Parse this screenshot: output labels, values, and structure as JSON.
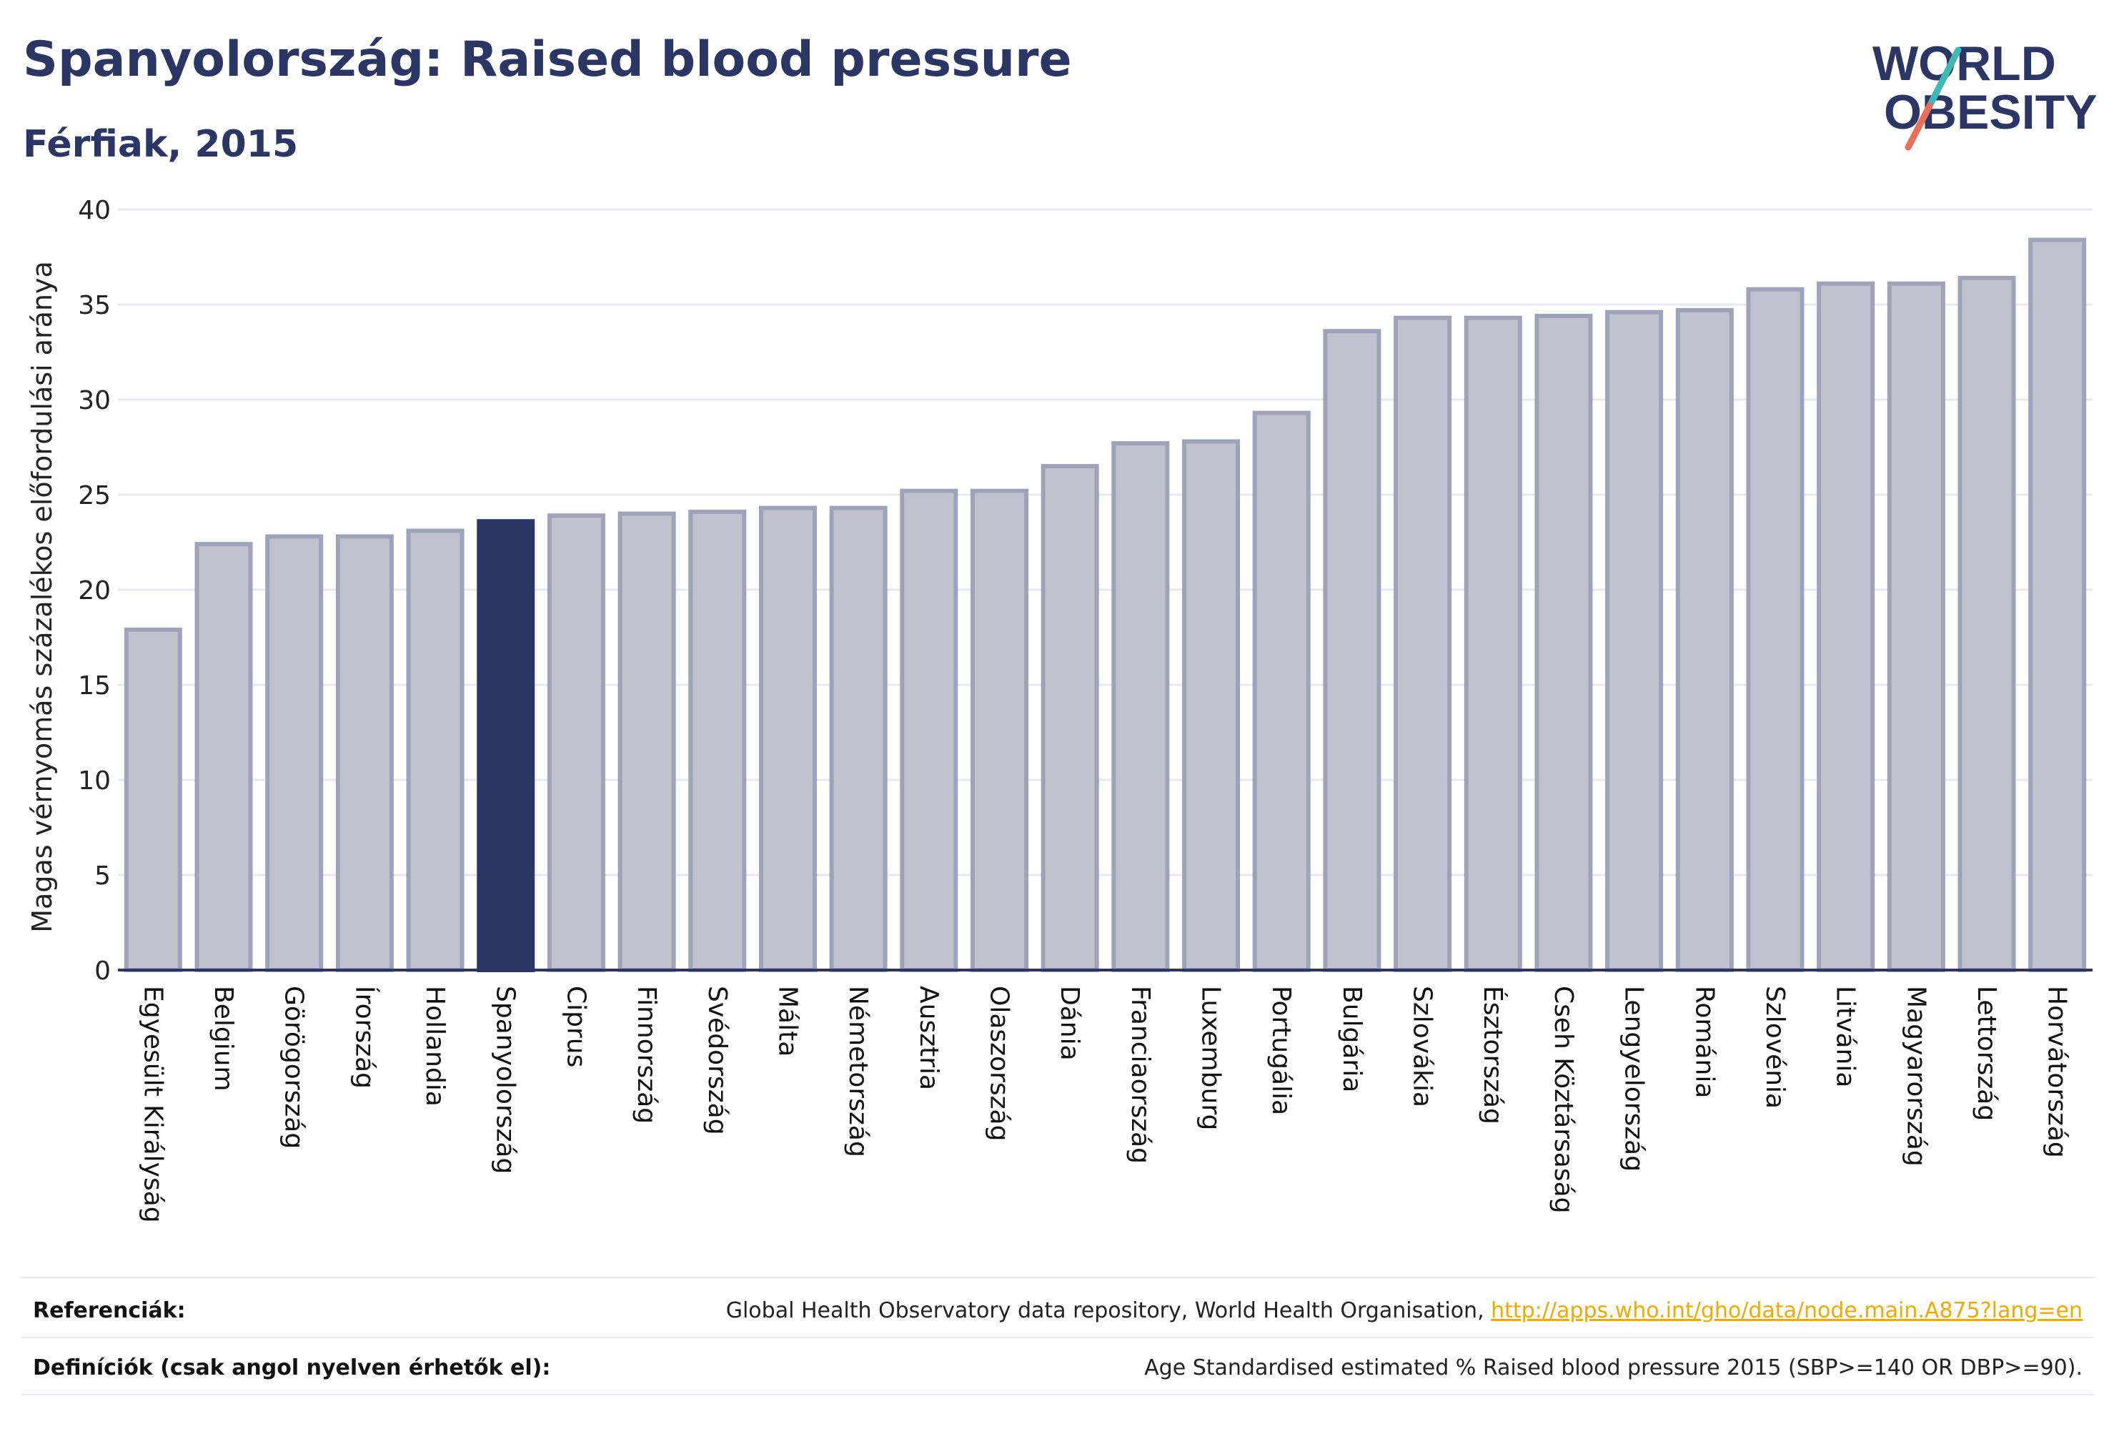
{
  "header": {
    "title": "Spanyolország: Raised blood pressure",
    "subtitle": "Férfiak, 2015"
  },
  "logo": {
    "line1": "WORLD",
    "line2": "OBESITY",
    "text_color": "#2b3664",
    "slash_colors": [
      "#3fb9b4",
      "#e8705a"
    ]
  },
  "colors": {
    "bar_fill": "#c0c3cf",
    "bar_stroke": "#9ea3ba",
    "highlight_fill": "#2b3664",
    "grid": "#e7e9f1",
    "axis": "#2b3664"
  },
  "chart_data": {
    "type": "bar",
    "ylabel": "Magas vérnyomás százalékos előfordulási aránya",
    "ylim": [
      0,
      40
    ],
    "yticks": [
      0,
      5,
      10,
      15,
      20,
      25,
      30,
      35,
      40
    ],
    "grid": true,
    "highlight": "Spanyolország",
    "categories": [
      "Egyesült Királyság",
      "Belgium",
      "Görögország",
      "Írország",
      "Hollandia",
      "Spanyolország",
      "Ciprus",
      "Finnország",
      "Svédország",
      "Málta",
      "Németország",
      "Ausztria",
      "Olaszország",
      "Dánia",
      "Franciaország",
      "Luxemburg",
      "Portugália",
      "Bulgária",
      "Szlovákia",
      "Észtország",
      "Cseh Köztársaság",
      "Lengyelország",
      "Románia",
      "Szlovénia",
      "Litvánia",
      "Magyarország",
      "Lettország",
      "Horvátország"
    ],
    "values": [
      17.9,
      22.4,
      22.8,
      22.8,
      23.1,
      23.6,
      23.9,
      24.0,
      24.1,
      24.3,
      24.3,
      25.2,
      25.2,
      26.5,
      27.7,
      27.8,
      29.3,
      33.6,
      34.3,
      34.3,
      34.4,
      34.6,
      34.7,
      35.8,
      36.1,
      36.1,
      36.4,
      38.4
    ]
  },
  "footer": {
    "references_label": "Referenciák:",
    "references_text": "Global Health Observatory data repository, World Health Organisation, ",
    "references_link": "http://apps.who.int/gho/data/node.main.A875?lang=en",
    "definitions_label": "Definíciók (csak angol nyelven érhetők el):",
    "definitions_text": "Age Standardised estimated % Raised blood pressure 2015 (SBP>=140 OR DBP>=90)."
  }
}
